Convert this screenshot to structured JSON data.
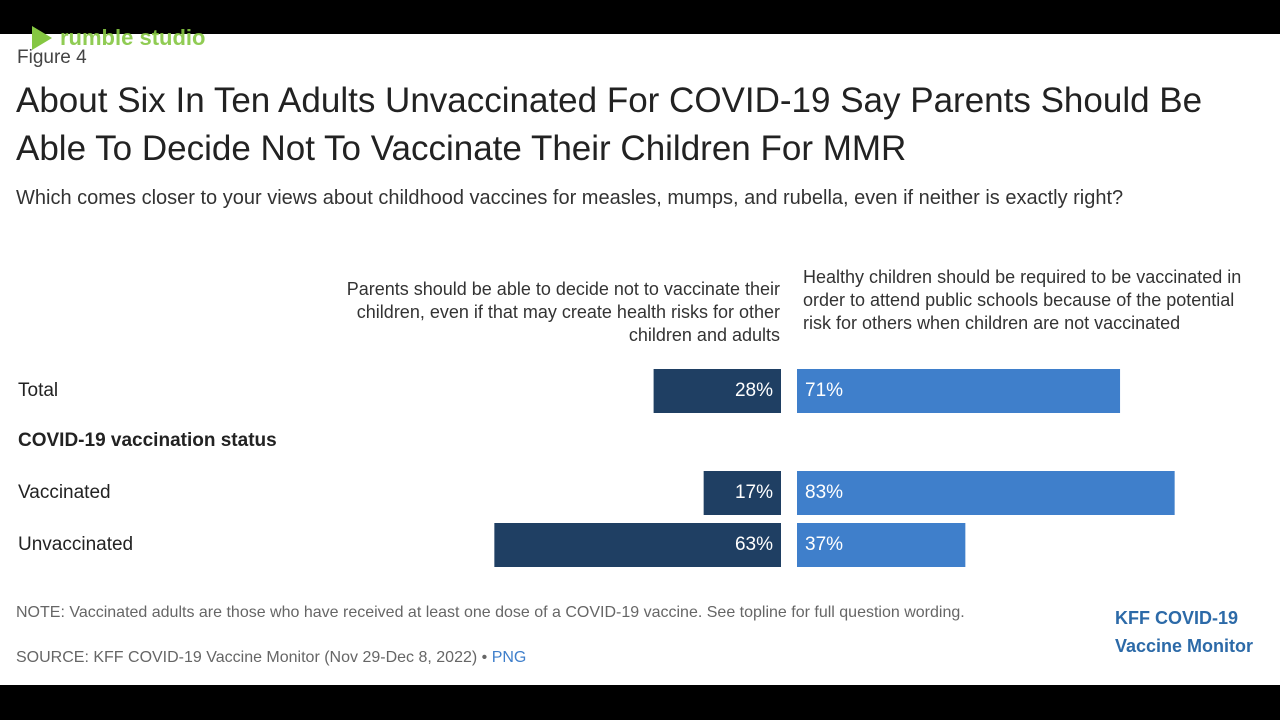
{
  "watermark": "rumble studio",
  "chart_data": {
    "type": "bar",
    "figure_label": "Figure 4",
    "title": "About Six In Ten Adults Unvaccinated For COVID-19 Say Parents Should Be Able To Decide Not To Vaccinate Their Children For MMR",
    "subtitle": "Which comes closer to your views about childhood vaccines for measles, mumps, and rubella, even if neither is exactly right?",
    "group_label": "COVID-19 vaccination status",
    "categories": [
      "Total",
      "Vaccinated",
      "Unvaccinated"
    ],
    "series": [
      {
        "name": "Parents should be able to decide not to vaccinate their children, even if that may create health risks for other children and adults",
        "color": "#1f3f63",
        "values": [
          28,
          17,
          63
        ],
        "value_labels": [
          "28%",
          "17%",
          "63%"
        ]
      },
      {
        "name": "Healthy children should be required to be vaccinated in order to attend public schools because of the potential risk for others when children are not vaccinated",
        "color": "#3f7fcb",
        "values": [
          71,
          83,
          37
        ],
        "value_labels": [
          "71%",
          "83%",
          "37%"
        ]
      }
    ],
    "note": "NOTE: Vaccinated adults are those who have received at least one dose of a COVID-19 vaccine. See topline for full question wording.",
    "source": "SOURCE: KFF COVID-19 Vaccine Monitor (Nov 29-Dec 8, 2022) •",
    "source_link": "PNG",
    "brand": [
      "KFF COVID-19",
      "Vaccine Monitor"
    ]
  }
}
